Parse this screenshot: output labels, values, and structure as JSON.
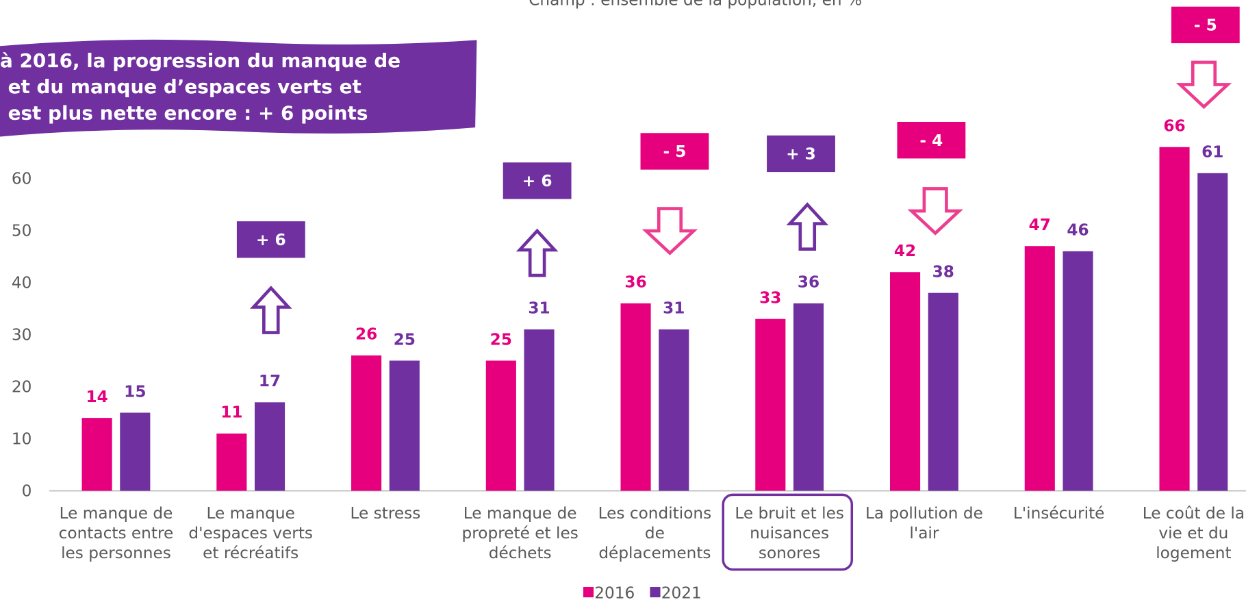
{
  "chart_data": {
    "type": "bar",
    "subtitle": "Champ : ensemble de la population, en %",
    "callout": [
      "à 2016, la progression du manque de",
      "et du manque d’espaces verts et",
      "est plus nette encore : + 6 points"
    ],
    "categories": [
      "Le manque de\ncontacts entre\nles personnes",
      "Le manque\nd'espaces verts\net récréatifs",
      "Le stress",
      "Le manque de\npropreté et les\ndéchets",
      "Les conditions\nde\ndéplacements",
      "Le bruit et les\nnuisances\nsonores",
      "La pollution de\nl'air",
      "L'insécurité",
      "Le coût de la\nvie et du\nlogement"
    ],
    "series": [
      {
        "name": "2016",
        "color": "#e6007e",
        "values": [
          14,
          11,
          26,
          25,
          36,
          33,
          42,
          47,
          66
        ]
      },
      {
        "name": "2021",
        "color": "#7030a0",
        "values": [
          15,
          17,
          25,
          31,
          31,
          36,
          38,
          46,
          61
        ]
      }
    ],
    "change_labels": [
      null,
      "+ 6",
      null,
      "+ 6",
      "- 5",
      "+ 3",
      "- 4",
      null,
      "- 5"
    ],
    "ylim": [
      0,
      70
    ],
    "yticks": [
      0,
      10,
      20,
      30,
      40,
      50,
      60
    ],
    "legend": "bottom"
  }
}
